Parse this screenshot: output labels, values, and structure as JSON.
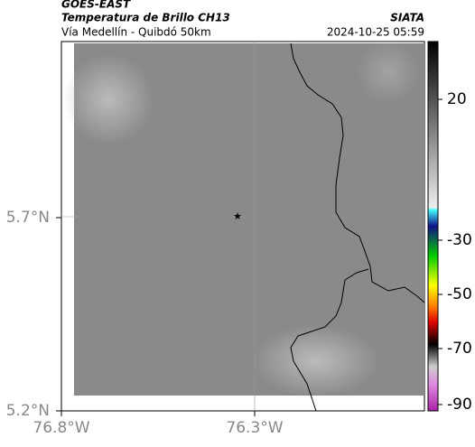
{
  "header": {
    "satellite": "GOES-EAST",
    "product": "Temperatura de Brillo CH13",
    "source": "SIATA",
    "location": "Vía Medellín - Quibdó 50km",
    "datetime": "2024-10-25 05:59"
  },
  "map": {
    "lat_ticks": [
      "5.7°N",
      "5.2°N"
    ],
    "lon_ticks": [
      "76.8°W",
      "76.3°W"
    ]
  },
  "colorbar": {
    "ticks": [
      "20",
      "-30",
      "-50",
      "-70",
      "-90"
    ]
  }
}
